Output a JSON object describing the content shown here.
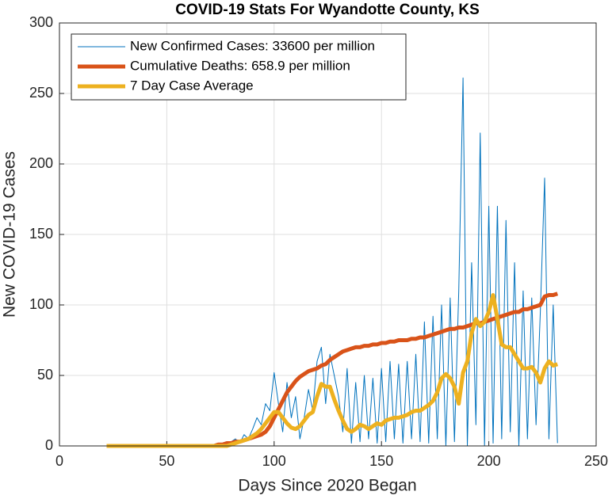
{
  "chart_data": {
    "type": "line",
    "title": "COVID-19 Stats For Wyandotte County, KS",
    "x_label": "Days Since 2020 Began",
    "y_label": "New COVID-19 Cases",
    "x": [
      22,
      24,
      26,
      28,
      30,
      32,
      34,
      36,
      38,
      40,
      42,
      44,
      46,
      48,
      50,
      52,
      54,
      56,
      58,
      60,
      62,
      64,
      66,
      68,
      70,
      72,
      74,
      76,
      78,
      80,
      82,
      84,
      86,
      88,
      90,
      92,
      94,
      96,
      98,
      100,
      102,
      104,
      106,
      108,
      110,
      112,
      114,
      116,
      118,
      120,
      122,
      124,
      126,
      128,
      130,
      132,
      134,
      136,
      138,
      140,
      142,
      144,
      146,
      148,
      150,
      152,
      154,
      156,
      158,
      160,
      162,
      164,
      166,
      168,
      170,
      172,
      174,
      176,
      178,
      180,
      182,
      184,
      186,
      188,
      190,
      192,
      194,
      196,
      198,
      200,
      202,
      204,
      206,
      208,
      210,
      212,
      214,
      216,
      218,
      220,
      222,
      224,
      226,
      228,
      230,
      232
    ],
    "series": [
      {
        "name": "New Confirmed Cases: 33600 per million",
        "color": "#0072bd",
        "width": 1,
        "values": [
          0,
          0,
          0,
          0,
          0,
          0,
          0,
          0,
          0,
          0,
          0,
          0,
          0,
          0,
          0,
          0,
          0,
          0,
          0,
          0,
          0,
          0,
          0,
          0,
          0,
          0,
          0,
          1,
          2,
          3,
          5,
          2,
          8,
          5,
          12,
          20,
          15,
          30,
          25,
          52,
          30,
          10,
          45,
          20,
          35,
          5,
          20,
          40,
          25,
          60,
          70,
          30,
          65,
          50,
          35,
          10,
          55,
          2,
          45,
          3,
          50,
          5,
          48,
          2,
          55,
          3,
          60,
          5,
          58,
          2,
          60,
          5,
          65,
          3,
          88,
          2,
          92,
          5,
          100,
          0,
          105,
          3,
          110,
          261,
          0,
          130,
          15,
          222,
          0,
          170,
          2,
          170,
          5,
          160,
          10,
          130,
          0,
          110,
          5,
          105,
          15,
          95,
          190,
          5,
          100,
          2
        ]
      },
      {
        "name": "Cumulative Deaths: 658.9 per million",
        "color": "#d95319",
        "width": 5,
        "values": [
          0,
          0,
          0,
          0,
          0,
          0,
          0,
          0,
          0,
          0,
          0,
          0,
          0,
          0,
          0,
          0,
          0,
          0,
          0,
          0,
          0,
          0,
          0,
          0,
          0,
          0,
          1,
          1,
          2,
          2,
          3,
          3,
          4,
          5,
          6,
          7,
          8,
          10,
          14,
          20,
          26,
          32,
          38,
          42,
          46,
          49,
          51,
          53,
          54,
          55,
          57,
          58,
          61,
          63,
          65,
          67,
          68,
          69,
          70,
          70,
          71,
          71,
          72,
          72,
          73,
          73,
          74,
          74,
          75,
          75,
          75,
          76,
          76,
          77,
          77,
          78,
          79,
          80,
          81,
          82,
          83,
          83,
          84,
          84,
          85,
          86,
          87,
          87,
          88,
          89,
          90,
          91,
          92,
          93,
          94,
          95,
          95,
          97,
          97,
          98,
          99,
          100,
          106,
          107,
          107,
          108
        ]
      },
      {
        "name": "7 Day Case Average",
        "color": "#edb120",
        "width": 5,
        "values": [
          0,
          0,
          0,
          0,
          0,
          0,
          0,
          0,
          0,
          0,
          0,
          0,
          0,
          0,
          0,
          0,
          0,
          0,
          0,
          0,
          0,
          0,
          0,
          0,
          0,
          0,
          0,
          0,
          0,
          1,
          2,
          3,
          4,
          5,
          7,
          9,
          12,
          16,
          20,
          24,
          24,
          20,
          16,
          13,
          12,
          14,
          18,
          22,
          24,
          35,
          44,
          42,
          42,
          33,
          25,
          18,
          12,
          10,
          12,
          15,
          14,
          12,
          14,
          16,
          15,
          18,
          19,
          20,
          20,
          21,
          22,
          24,
          25,
          25,
          27,
          29,
          32,
          38,
          48,
          51,
          48,
          42,
          30,
          52,
          60,
          80,
          90,
          85,
          88,
          95,
          107,
          90,
          72,
          70,
          70,
          65,
          60,
          55,
          55,
          56,
          52,
          45,
          55,
          60,
          57,
          58
        ]
      }
    ],
    "xlim": [
      0,
      250
    ],
    "xticks": [
      0,
      50,
      100,
      150,
      200,
      250
    ],
    "ylim": [
      0,
      300
    ],
    "yticks": [
      0,
      50,
      100,
      150,
      200,
      250,
      300
    ],
    "grid": true,
    "legend": "upper left"
  }
}
